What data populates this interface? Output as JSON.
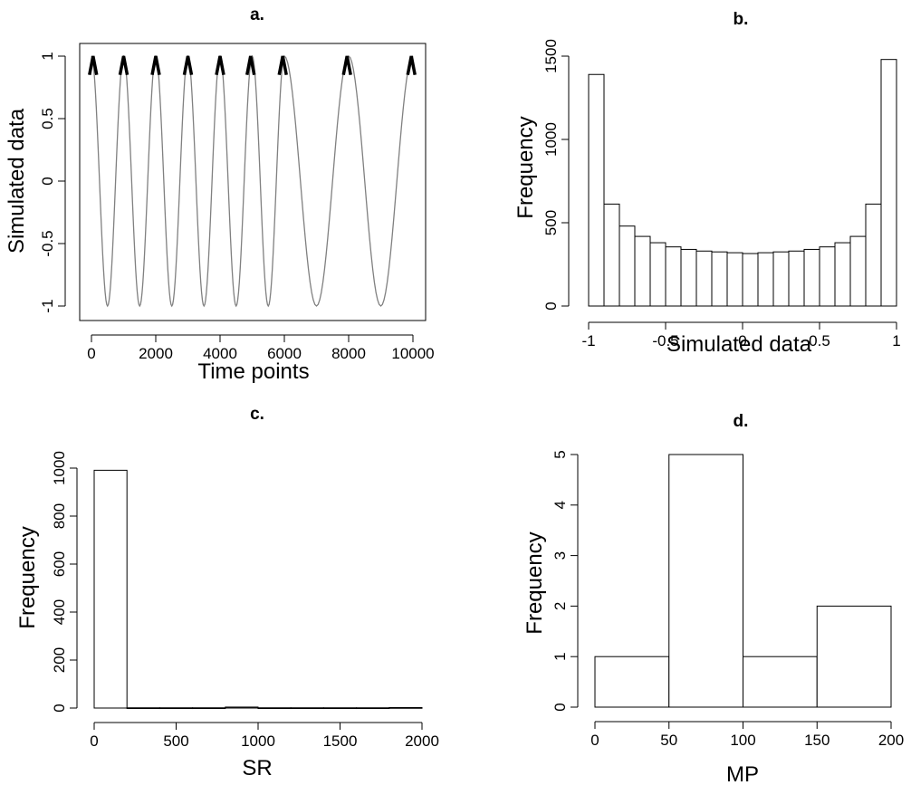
{
  "chart_data": [
    {
      "id": "a",
      "type": "line",
      "title": "a.",
      "xlabel": "Time points",
      "ylabel": "Simulated data",
      "xlim": [
        0,
        10000
      ],
      "ylim": [
        -1,
        1
      ],
      "xticks": [
        "0",
        "2000",
        "4000",
        "6000",
        "8000",
        "10000"
      ],
      "yticks": [
        "-1",
        "-0.5",
        "0",
        "0.5",
        "1"
      ],
      "series": [
        {
          "peaks_x": [
            0,
            1000,
            2000,
            3000,
            4000,
            5000,
            6000,
            8000,
            10000
          ],
          "troughs_x": [
            500,
            1500,
            2500,
            3500,
            4500,
            5500,
            7000,
            9000
          ],
          "amplitude": 1,
          "color": "#808080"
        }
      ],
      "peak_markers": [
        50,
        1000,
        2000,
        3000,
        4000,
        4950,
        5950,
        7950,
        9950
      ],
      "grid": false,
      "box": true
    },
    {
      "id": "b",
      "type": "bar",
      "title": "b.",
      "xlabel": "Simulated data",
      "ylabel": "Frequency",
      "bin_edges": [
        -1,
        -0.9,
        -0.8,
        -0.7,
        -0.6,
        -0.5,
        -0.4,
        -0.3,
        -0.2,
        -0.1,
        0,
        0.1,
        0.2,
        0.3,
        0.4,
        0.5,
        0.6,
        0.7,
        0.8,
        0.9,
        1
      ],
      "values": [
        1390,
        612,
        480,
        418,
        380,
        355,
        340,
        330,
        325,
        320,
        315,
        320,
        325,
        330,
        340,
        355,
        380,
        418,
        612,
        1480
      ],
      "xlim": [
        -1,
        1
      ],
      "ylim": [
        0,
        1500
      ],
      "xticks": [
        "-1",
        "-0.5",
        "0",
        "0.5",
        "1"
      ],
      "yticks": [
        "0",
        "500",
        "1000",
        "1500"
      ],
      "grid": false
    },
    {
      "id": "c",
      "type": "bar",
      "title": "c.",
      "xlabel": "SR",
      "ylabel": "Frequency",
      "bin_edges": [
        0,
        200,
        400,
        600,
        800,
        1000,
        1200,
        1400,
        1600,
        1800,
        2000
      ],
      "values": [
        991,
        1,
        1,
        1,
        4,
        1,
        1,
        1,
        1,
        2
      ],
      "xlim": [
        0,
        2000
      ],
      "ylim": [
        0,
        1000
      ],
      "xticks": [
        "0",
        "500",
        "1000",
        "1500",
        "2000"
      ],
      "yticks": [
        "0",
        "200",
        "400",
        "600",
        "800",
        "1000"
      ],
      "grid": false
    },
    {
      "id": "d",
      "type": "bar",
      "title": "d.",
      "xlabel": "MP",
      "ylabel": "Frequency",
      "bin_edges": [
        0,
        50,
        100,
        150,
        200
      ],
      "values": [
        1,
        5,
        1,
        2
      ],
      "xlim": [
        0,
        200
      ],
      "ylim": [
        0,
        5
      ],
      "xticks": [
        "0",
        "50",
        "100",
        "150",
        "200"
      ],
      "yticks": [
        "0",
        "1",
        "2",
        "3",
        "4",
        "5"
      ],
      "grid": false
    }
  ]
}
